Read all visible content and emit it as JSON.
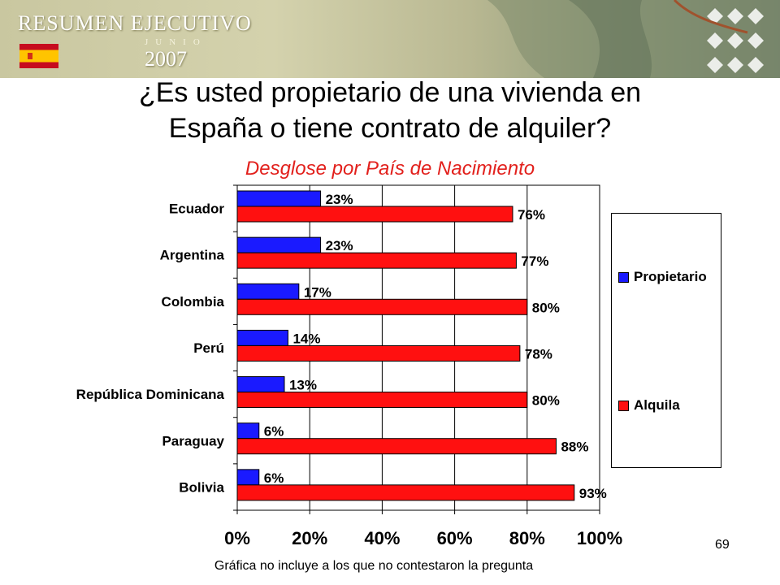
{
  "header": {
    "title": "RESUMEN EJECUTIVO",
    "month": "JUNIO",
    "year": "2007",
    "flag_colors": {
      "red": "#c60b1e",
      "yellow": "#ffc400"
    }
  },
  "slide": {
    "title_line1": "¿Es usted propietario de una vivienda en",
    "title_line2": "España o tiene contrato de alquiler?",
    "subtitle": "Desglose por País de Nacimiento",
    "footnote": "Gráfica no incluye a los que no contestaron la pregunta",
    "page_number": "69"
  },
  "chart_data": {
    "type": "bar",
    "orientation": "horizontal",
    "categories": [
      "Ecuador",
      "Argentina",
      "Colombia",
      "Perú",
      "República Dominicana",
      "Paraguay",
      "Bolivia"
    ],
    "series": [
      {
        "name": "Propietario",
        "color": "#1a1aff",
        "values": [
          23,
          23,
          17,
          14,
          13,
          6,
          6
        ],
        "labels": [
          "23%",
          "23%",
          "17%",
          "14%",
          "13%",
          "6%",
          "6%"
        ]
      },
      {
        "name": "Alquila",
        "color": "#ff1010",
        "values": [
          76,
          77,
          80,
          78,
          80,
          88,
          93
        ],
        "labels": [
          "76%",
          "77%",
          "80%",
          "78%",
          "80%",
          "88%",
          "93%"
        ]
      }
    ],
    "xlim": [
      0,
      100
    ],
    "xticks": [
      "0%",
      "20%",
      "40%",
      "60%",
      "80%",
      "100%"
    ],
    "grid": true,
    "legend_position": "right"
  }
}
